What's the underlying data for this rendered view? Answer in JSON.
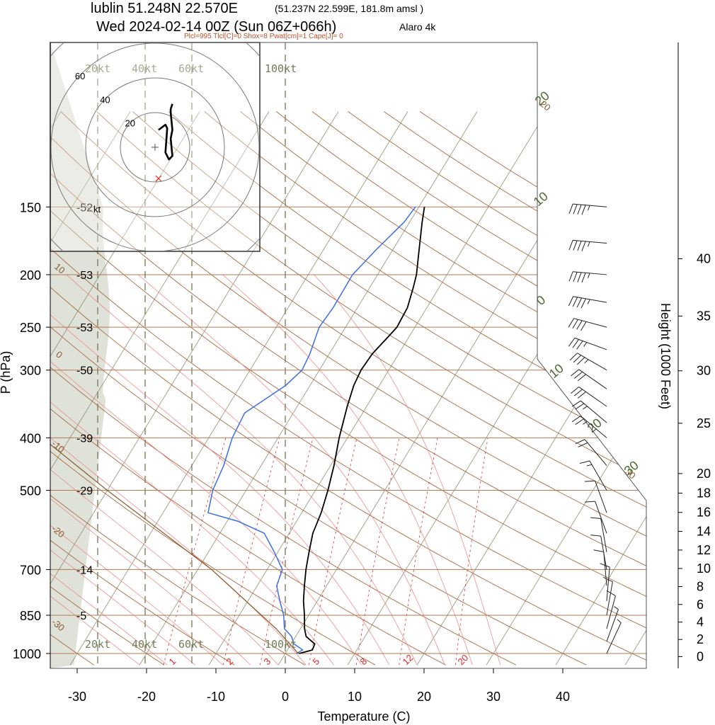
{
  "header": {
    "station_line": "lublin 51.248N 22.570E",
    "station_detail": "(51.237N 22.599E, 181.8m amsl )",
    "time_line": "Wed 2024-02-14 00Z (Sun 06Z+066h)",
    "model": "Alaro 4k",
    "indices": "Plcl=995 Tlcl[C]=0 Shox=8 Pwat[cm]=1 Cape[J]= 0"
  },
  "chart_data": {
    "type": "line",
    "subtype": "skew-t log-p sounding",
    "xlabel": "Temperature (C)",
    "ylabel": "P (hPa)",
    "y2label": "Height (1000 Feet)",
    "x_ticks": [
      -30,
      -20,
      -10,
      0,
      10,
      20,
      30,
      40
    ],
    "x_tick_labels": [
      "-30",
      "-20",
      "-10",
      "0",
      "10",
      "20",
      "30",
      "40"
    ],
    "xlim": [
      -34,
      52
    ],
    "ylim": [
      1050,
      150
    ],
    "pressure_ticks": [
      150,
      200,
      250,
      300,
      400,
      500,
      700,
      850,
      1000
    ],
    "pressure_tick_labels": [
      "150",
      "200",
      "250",
      "300",
      "400",
      "500",
      "700",
      "850",
      "1000"
    ],
    "temperature_annotations": [
      {
        "p": 150,
        "label": "-52"
      },
      {
        "p": 200,
        "label": "-53"
      },
      {
        "p": 250,
        "label": "-53"
      },
      {
        "p": 300,
        "label": "-50"
      },
      {
        "p": 400,
        "label": "-39"
      },
      {
        "p": 500,
        "label": "-29"
      },
      {
        "p": 700,
        "label": "-14"
      },
      {
        "p": 850,
        "label": "-5"
      }
    ],
    "height_ticks_kft": [
      0,
      2,
      4,
      6,
      8,
      10,
      12,
      14,
      16,
      18,
      20,
      25,
      30,
      35,
      40
    ],
    "height_tick_labels": [
      "0",
      "2",
      "4",
      "6",
      "8",
      "10",
      "12",
      "14",
      "16",
      "18",
      "20",
      "25",
      "30",
      "35",
      "40"
    ],
    "isotherm_labels": [
      {
        "t": -30,
        "label": "-30"
      },
      {
        "t": -20,
        "label": "-20"
      },
      {
        "t": -10,
        "label": "-10"
      },
      {
        "t": 0,
        "label": "0"
      },
      {
        "t": 10,
        "label": "10"
      },
      {
        "t": 20,
        "label": "20"
      },
      {
        "t": 30,
        "label": "30"
      }
    ],
    "mixing_ratio_labels": [
      "1",
      "2",
      "3",
      "5",
      "8",
      "12",
      "20"
    ],
    "mixing_ratios_gkg": [
      1,
      2,
      3,
      5,
      8,
      12,
      20
    ],
    "series": [
      {
        "role": "temperature",
        "color": "#000000",
        "points": [
          [
            1000,
            2.0
          ],
          [
            985,
            3.6
          ],
          [
            960,
            3.4
          ],
          [
            930,
            1.5
          ],
          [
            900,
            0.6
          ],
          [
            850,
            -0.6
          ],
          [
            800,
            -2.0
          ],
          [
            750,
            -3.2
          ],
          [
            700,
            -4.4
          ],
          [
            650,
            -5.5
          ],
          [
            600,
            -6.6
          ],
          [
            550,
            -7.2
          ],
          [
            500,
            -8.2
          ],
          [
            450,
            -9.5
          ],
          [
            400,
            -11.2
          ],
          [
            350,
            -12.8
          ],
          [
            320,
            -13.7
          ],
          [
            300,
            -14.0
          ],
          [
            280,
            -13.8
          ],
          [
            260,
            -13.0
          ],
          [
            250,
            -12.6
          ],
          [
            230,
            -12.8
          ],
          [
            210,
            -13.8
          ],
          [
            200,
            -14.4
          ],
          [
            180,
            -16.2
          ],
          [
            160,
            -18.2
          ],
          [
            150,
            -19.2
          ]
        ]
      },
      {
        "role": "dewpoint",
        "color": "#3c6ee0",
        "points": [
          [
            1000,
            1.6
          ],
          [
            985,
            2.2
          ],
          [
            960,
            0.4
          ],
          [
            930,
            -0.6
          ],
          [
            900,
            -2.3
          ],
          [
            850,
            -3.6
          ],
          [
            800,
            -5.4
          ],
          [
            750,
            -7.2
          ],
          [
            700,
            -7.8
          ],
          [
            650,
            -10.5
          ],
          [
            600,
            -13.6
          ],
          [
            570,
            -18.5
          ],
          [
            550,
            -23.5
          ],
          [
            500,
            -24.8
          ],
          [
            450,
            -25.4
          ],
          [
            400,
            -26.6
          ],
          [
            360,
            -27.0
          ],
          [
            320,
            -23.5
          ],
          [
            300,
            -22.5
          ],
          [
            280,
            -22.8
          ],
          [
            250,
            -23.8
          ],
          [
            230,
            -23.5
          ],
          [
            200,
            -23.6
          ],
          [
            180,
            -22.4
          ],
          [
            160,
            -20.8
          ],
          [
            150,
            -20.5
          ]
        ]
      },
      {
        "role": "parcel",
        "color": "#8b5a2b",
        "points": [
          [
            1000,
            2.0
          ],
          [
            995,
            1.6
          ],
          [
            900,
            -3.5
          ],
          [
            850,
            -6.8
          ],
          [
            700,
            -18.0
          ],
          [
            500,
            -40.0
          ],
          [
            400,
            -54.0
          ],
          [
            300,
            -72.0
          ]
        ]
      }
    ],
    "wind_barbs": [
      {
        "p": 150,
        "dir": 275,
        "kt": 45
      },
      {
        "p": 175,
        "dir": 275,
        "kt": 45
      },
      {
        "p": 200,
        "dir": 275,
        "kt": 45
      },
      {
        "p": 225,
        "dir": 280,
        "kt": 45
      },
      {
        "p": 250,
        "dir": 285,
        "kt": 40
      },
      {
        "p": 275,
        "dir": 290,
        "kt": 35
      },
      {
        "p": 300,
        "dir": 300,
        "kt": 35
      },
      {
        "p": 325,
        "dir": 305,
        "kt": 30
      },
      {
        "p": 350,
        "dir": 305,
        "kt": 30
      },
      {
        "p": 375,
        "dir": 310,
        "kt": 25
      },
      {
        "p": 400,
        "dir": 310,
        "kt": 25
      },
      {
        "p": 450,
        "dir": 320,
        "kt": 20
      },
      {
        "p": 500,
        "dir": 330,
        "kt": 15
      },
      {
        "p": 550,
        "dir": 340,
        "kt": 10
      },
      {
        "p": 600,
        "dir": 340,
        "kt": 10
      },
      {
        "p": 650,
        "dir": 350,
        "kt": 10
      },
      {
        "p": 700,
        "dir": 350,
        "kt": 10
      },
      {
        "p": 750,
        "dir": 355,
        "kt": 10
      },
      {
        "p": 800,
        "dir": 5,
        "kt": 10
      },
      {
        "p": 850,
        "dir": 10,
        "kt": 10
      },
      {
        "p": 900,
        "dir": 15,
        "kt": 10
      },
      {
        "p": 950,
        "dir": 20,
        "kt": 5
      },
      {
        "p": 1000,
        "dir": 25,
        "kt": 5
      }
    ],
    "hodograph": {
      "ring_labels_kt": [
        20,
        40,
        60
      ],
      "speed_scale_labels": [
        "20kt",
        "40kt",
        "60kt",
        "100kt"
      ],
      "unit_label": "kt",
      "track_kt": [
        [
          2,
          10
        ],
        [
          6,
          13
        ],
        [
          7,
          11
        ],
        [
          6,
          -3
        ],
        [
          8,
          -7
        ],
        [
          10,
          -5
        ],
        [
          9,
          5
        ],
        [
          10,
          10
        ],
        [
          9,
          20
        ],
        [
          9,
          22
        ],
        [
          10,
          25
        ]
      ],
      "storm_motion_kt": [
        2,
        -18
      ]
    }
  }
}
